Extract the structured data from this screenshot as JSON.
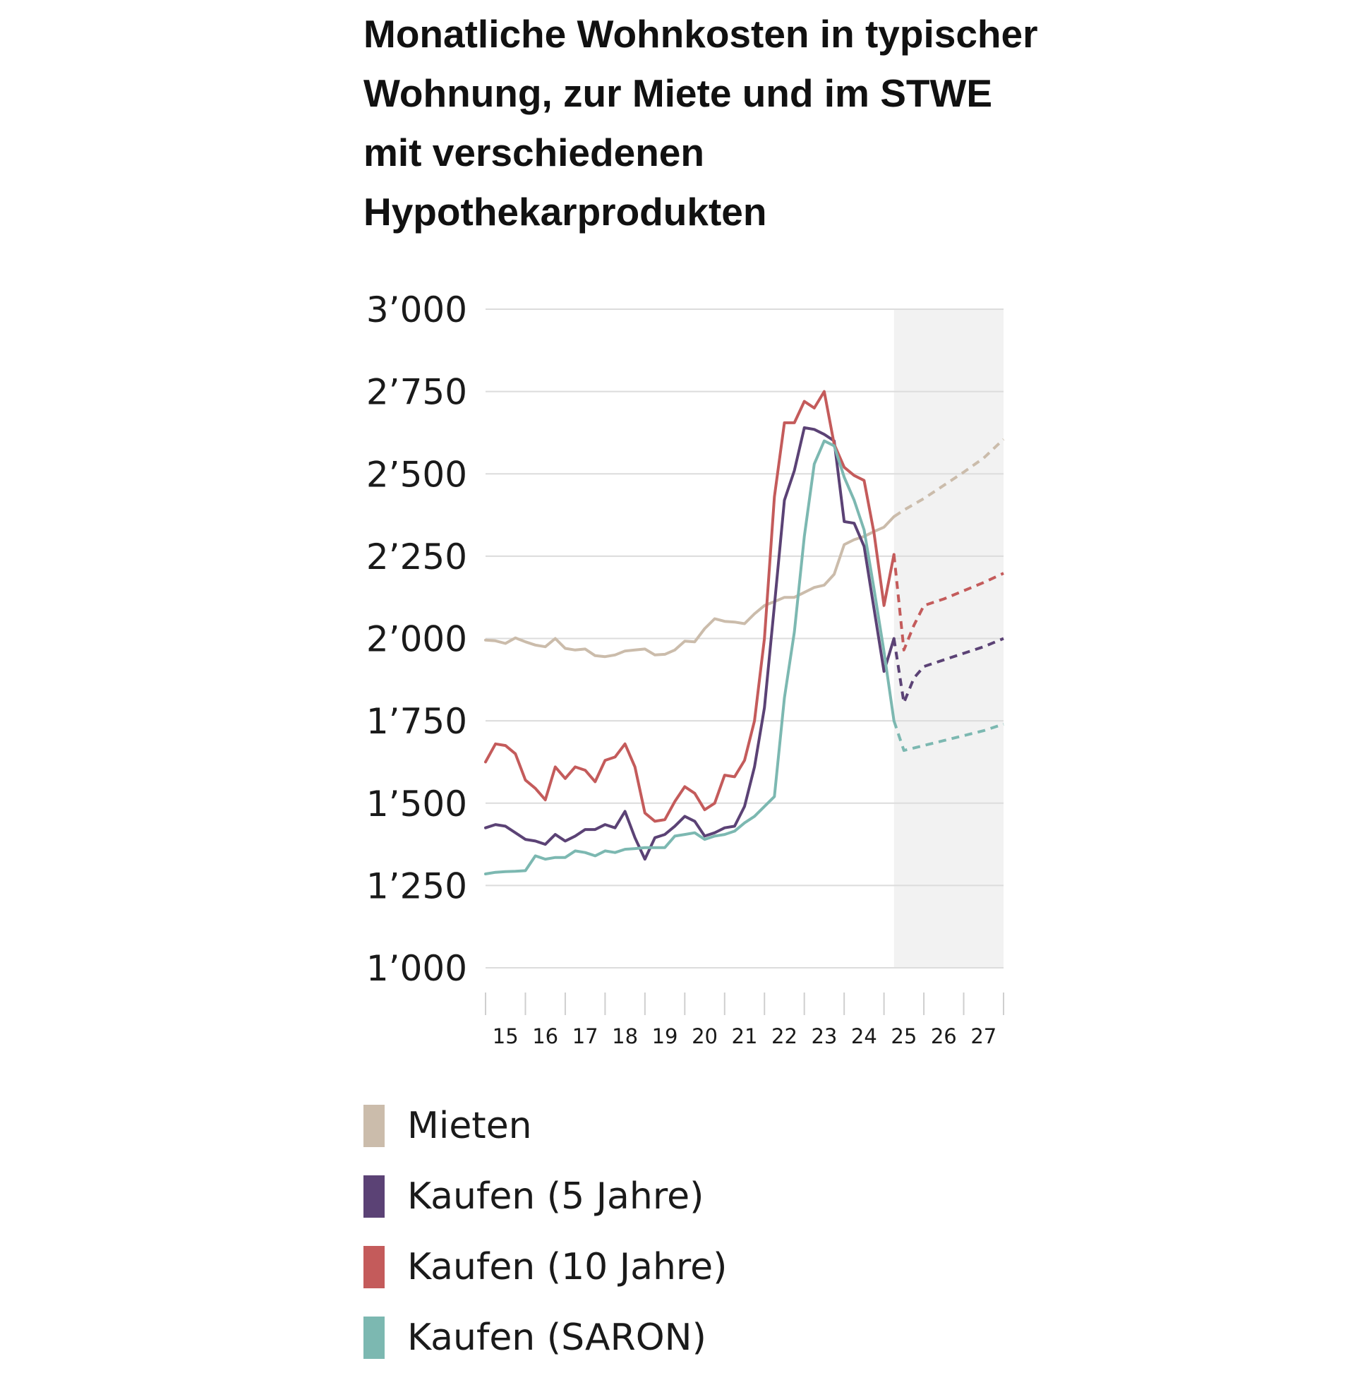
{
  "chart_data": {
    "type": "line",
    "title": "Monatliche Wohnkosten in typischer Wohnung, zur Miete und im STWE mit verschiedenen Hypothekarprodukten",
    "ylim": [
      1000,
      3000
    ],
    "yticks": [
      1000,
      1250,
      1500,
      1750,
      2000,
      2250,
      2500,
      2750,
      3000
    ],
    "ytick_labels": [
      "1’000",
      "1’250",
      "1’500",
      "1’750",
      "2’000",
      "2’250",
      "2’500",
      "2’750",
      "3’000"
    ],
    "xlim": [
      2014.5,
      2027.5
    ],
    "xticks": [
      2015,
      2016,
      2017,
      2018,
      2019,
      2020,
      2021,
      2022,
      2023,
      2024,
      2025,
      2026,
      2027
    ],
    "xtick_labels": [
      "15",
      "16",
      "17",
      "18",
      "19",
      "20",
      "21",
      "22",
      "23",
      "24",
      "25",
      "26",
      "27"
    ],
    "forecast_start": 2024.75,
    "grid": true,
    "legend_position": "bottom",
    "series": [
      {
        "name": "Mieten",
        "color": "#cbbcab",
        "x": [
          2014.5,
          2014.75,
          2015.0,
          2015.25,
          2015.5,
          2015.75,
          2016.0,
          2016.25,
          2016.5,
          2016.75,
          2017.0,
          2017.25,
          2017.5,
          2017.75,
          2018.0,
          2018.25,
          2018.5,
          2018.75,
          2019.0,
          2019.25,
          2019.5,
          2019.75,
          2020.0,
          2020.25,
          2020.5,
          2020.75,
          2021.0,
          2021.25,
          2021.5,
          2021.75,
          2022.0,
          2022.25,
          2022.5,
          2022.75,
          2023.0,
          2023.25,
          2023.5,
          2023.75,
          2024.0,
          2024.25,
          2024.5,
          2024.75
        ],
        "values": [
          1995,
          1993,
          1985,
          2002,
          1990,
          1980,
          1975,
          2000,
          1970,
          1965,
          1968,
          1948,
          1945,
          1950,
          1962,
          1965,
          1968,
          1950,
          1952,
          1965,
          1992,
          1990,
          2030,
          2060,
          2052,
          2050,
          2045,
          2075,
          2100,
          2112,
          2125,
          2125,
          2140,
          2155,
          2162,
          2195,
          2285,
          2300,
          2310,
          2325,
          2338,
          2370
        ],
        "forecast_x": [
          2024.75,
          2025.0,
          2025.5,
          2026.0,
          2026.5,
          2027.0,
          2027.5
        ],
        "forecast_values": [
          2370,
          2390,
          2425,
          2465,
          2505,
          2548,
          2605
        ]
      },
      {
        "name": "Kaufen (5 Jahre)",
        "color": "#5b4275",
        "x": [
          2014.5,
          2014.75,
          2015.0,
          2015.25,
          2015.5,
          2015.75,
          2016.0,
          2016.25,
          2016.5,
          2016.75,
          2017.0,
          2017.25,
          2017.5,
          2017.75,
          2018.0,
          2018.25,
          2018.5,
          2018.75,
          2019.0,
          2019.25,
          2019.5,
          2019.75,
          2020.0,
          2020.25,
          2020.5,
          2020.75,
          2021.0,
          2021.25,
          2021.5,
          2021.75,
          2022.0,
          2022.25,
          2022.5,
          2022.75,
          2023.0,
          2023.25,
          2023.5,
          2023.75,
          2024.0,
          2024.25,
          2024.5,
          2024.75
        ],
        "values": [
          1425,
          1435,
          1430,
          1410,
          1390,
          1385,
          1375,
          1405,
          1385,
          1400,
          1420,
          1420,
          1435,
          1425,
          1475,
          1395,
          1330,
          1395,
          1405,
          1430,
          1460,
          1445,
          1400,
          1410,
          1425,
          1430,
          1490,
          1610,
          1790,
          2100,
          2420,
          2510,
          2640,
          2635,
          2620,
          2600,
          2355,
          2350,
          2280,
          2090,
          1900,
          2000
        ],
        "forecast_x": [
          2024.75,
          2025.0,
          2025.25,
          2025.5,
          2026.0,
          2026.5,
          2027.0,
          2027.5
        ],
        "forecast_values": [
          2000,
          1805,
          1880,
          1915,
          1935,
          1955,
          1975,
          2000
        ]
      },
      {
        "name": "Kaufen (10 Jahre)",
        "color": "#c45b5b",
        "x": [
          2014.5,
          2014.75,
          2015.0,
          2015.25,
          2015.5,
          2015.75,
          2016.0,
          2016.25,
          2016.5,
          2016.75,
          2017.0,
          2017.25,
          2017.5,
          2017.75,
          2018.0,
          2018.25,
          2018.5,
          2018.75,
          2019.0,
          2019.25,
          2019.5,
          2019.75,
          2020.0,
          2020.25,
          2020.5,
          2020.75,
          2021.0,
          2021.25,
          2021.5,
          2021.75,
          2022.0,
          2022.25,
          2022.5,
          2022.75,
          2023.0,
          2023.25,
          2023.5,
          2023.75,
          2024.0,
          2024.25,
          2024.5,
          2024.75
        ],
        "values": [
          1625,
          1680,
          1675,
          1650,
          1570,
          1545,
          1510,
          1610,
          1575,
          1610,
          1600,
          1565,
          1630,
          1640,
          1680,
          1610,
          1470,
          1445,
          1450,
          1505,
          1550,
          1530,
          1480,
          1500,
          1585,
          1580,
          1630,
          1750,
          2000,
          2430,
          2655,
          2655,
          2720,
          2700,
          2750,
          2590,
          2520,
          2495,
          2480,
          2320,
          2100,
          2255
        ],
        "forecast_x": [
          2024.75,
          2025.0,
          2025.25,
          2025.5,
          2026.0,
          2026.5,
          2027.0,
          2027.5
        ],
        "forecast_values": [
          2255,
          1965,
          2040,
          2100,
          2120,
          2145,
          2170,
          2198
        ]
      },
      {
        "name": "Kaufen (SARON)",
        "color": "#7cb8b1",
        "x": [
          2014.5,
          2014.75,
          2015.0,
          2015.25,
          2015.5,
          2015.75,
          2016.0,
          2016.25,
          2016.5,
          2016.75,
          2017.0,
          2017.25,
          2017.5,
          2017.75,
          2018.0,
          2018.25,
          2018.5,
          2018.75,
          2019.0,
          2019.25,
          2019.5,
          2019.75,
          2020.0,
          2020.25,
          2020.5,
          2020.75,
          2021.0,
          2021.25,
          2021.5,
          2021.75,
          2022.0,
          2022.25,
          2022.5,
          2022.75,
          2023.0,
          2023.25,
          2023.5,
          2023.75,
          2024.0,
          2024.25,
          2024.5,
          2024.75
        ],
        "values": [
          1285,
          1290,
          1292,
          1293,
          1295,
          1340,
          1330,
          1335,
          1335,
          1355,
          1350,
          1340,
          1355,
          1350,
          1360,
          1362,
          1365,
          1365,
          1365,
          1400,
          1405,
          1410,
          1390,
          1400,
          1405,
          1415,
          1440,
          1460,
          1490,
          1520,
          1820,
          2020,
          2310,
          2530,
          2600,
          2585,
          2490,
          2420,
          2330,
          2150,
          1960,
          1750
        ],
        "forecast_x": [
          2024.75,
          2025.0,
          2025.5,
          2026.0,
          2026.5,
          2027.0,
          2027.5
        ],
        "forecast_values": [
          1750,
          1660,
          1675,
          1690,
          1705,
          1720,
          1740
        ]
      }
    ]
  }
}
